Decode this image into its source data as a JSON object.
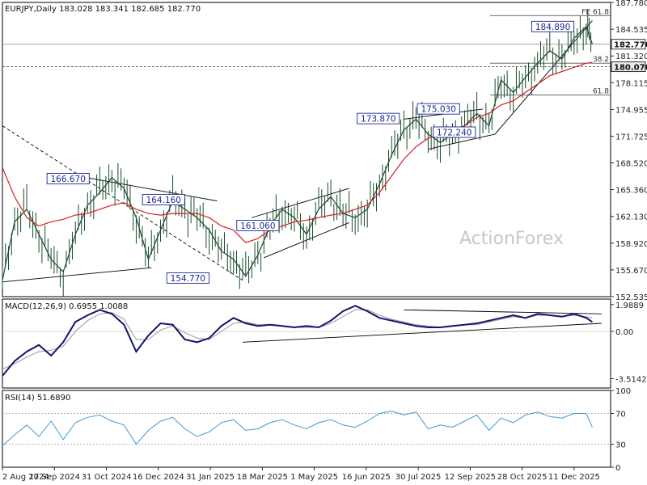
{
  "header": {
    "price": "EURJPY,Daily  183.028 183.341 182.685 182.770",
    "macd": "MACD(12,26,9) 0.6955 1.0088",
    "rsi": "RSI(14) 51.6890"
  },
  "watermark": "ActionForex",
  "colors": {
    "price": "#1a4a2c",
    "ma": "#d62020",
    "macd": "#14146e",
    "signal": "#999999",
    "rsi": "#3d9ad4",
    "trend": "#000000",
    "label_border": "#1a2a8c"
  },
  "chart_data": [
    {
      "type": "line",
      "title": "EURJPY,Daily",
      "ohlc_last": {
        "open": 183.028,
        "high": 183.341,
        "low": 182.685,
        "close": 182.77
      },
      "x_ticks": [
        "2 Aug 2024",
        "17 Sep 2024",
        "31 Oct 2024",
        "16 Dec 2024",
        "31 Jan 2025",
        "18 Mar 2025",
        "1 May 2025",
        "16 Jun 2025",
        "30 Jul 2025",
        "12 Sep 2025",
        "28 Oct 2025",
        "11 Dec 2025"
      ],
      "ylim": [
        152.535,
        187.78
      ],
      "y_ticks": [
        "187.780",
        "184.535",
        "181.320",
        "178.115",
        "174.955",
        "171.725",
        "168.520",
        "165.360",
        "162.130",
        "158.920",
        "155.670",
        "152.535"
      ],
      "tag_levels": [
        {
          "label": "182.770",
          "value": 182.77
        },
        {
          "label": "180.070",
          "value": 180.07
        }
      ],
      "fib_levels": [
        {
          "label": "FE 61.8",
          "value": 186.2
        },
        {
          "label": "38.2",
          "value": 180.5
        },
        {
          "label": "61.8",
          "value": 176.7
        }
      ],
      "annotations": [
        {
          "label": "166.670",
          "x": 10.8,
          "y": 166.67
        },
        {
          "label": "164.160",
          "x": 26.5,
          "y": 164.16
        },
        {
          "label": "154.770",
          "x": 30.5,
          "y": 154.77
        },
        {
          "label": "161.060",
          "x": 42.0,
          "y": 161.06
        },
        {
          "label": "173.870",
          "x": 61.8,
          "y": 173.87
        },
        {
          "label": "175.030",
          "x": 71.7,
          "y": 175.03
        },
        {
          "label": "172.240",
          "x": 74.3,
          "y": 172.24
        },
        {
          "label": "184.890",
          "x": 90.5,
          "y": 184.89
        }
      ],
      "trendlines": [
        {
          "from": [
            0,
            154.3
          ],
          "to": [
            24.5,
            156.0
          ]
        },
        {
          "from": [
            13.0,
            166.9
          ],
          "to": [
            35.3,
            164.0
          ]
        },
        {
          "from": [
            41.0,
            162.0
          ],
          "to": [
            57.0,
            165.5
          ]
        },
        {
          "from": [
            43.0,
            157.2
          ],
          "to": [
            57.0,
            161.4
          ]
        },
        {
          "from": [
            66.0,
            173.8
          ],
          "to": [
            79.0,
            175.0
          ]
        },
        {
          "from": [
            70.0,
            170.2
          ],
          "to": [
            81.0,
            172.0
          ]
        },
        {
          "from": [
            81.0,
            172.0
          ],
          "to": [
            97.0,
            185.6
          ]
        },
        {
          "from": [
            0,
            173.0
          ],
          "to": [
            39.5,
            154.5
          ],
          "dashed": true
        }
      ],
      "x": [
        0,
        2,
        4,
        6,
        8,
        10,
        12,
        14,
        16,
        18,
        20,
        22,
        24,
        26,
        28,
        30,
        32,
        34,
        36,
        38,
        40,
        42,
        44,
        46,
        48,
        50,
        52,
        54,
        56,
        58,
        60,
        62,
        64,
        66,
        68,
        70,
        72,
        74,
        76,
        78,
        80,
        82,
        84,
        86,
        88,
        90,
        92,
        94,
        96,
        97
      ],
      "series": [
        {
          "name": "EURJPY",
          "values": [
            154.5,
            161.5,
            163.0,
            160.0,
            157.0,
            155.5,
            160.0,
            163.5,
            165.0,
            166.8,
            165.5,
            162.0,
            157.0,
            160.5,
            164.0,
            163.0,
            162.0,
            160.5,
            158.0,
            157.0,
            155.0,
            157.5,
            161.0,
            163.0,
            162.0,
            160.0,
            163.0,
            164.5,
            162.5,
            162.0,
            163.0,
            166.0,
            169.5,
            172.5,
            173.8,
            172.0,
            171.0,
            172.0,
            173.0,
            174.5,
            173.0,
            178.5,
            177.0,
            178.8,
            180.5,
            182.0,
            181.0,
            183.5,
            184.9,
            182.8
          ]
        },
        {
          "name": "MA",
          "values": [
            168.0,
            164.5,
            162.0,
            161.0,
            161.5,
            161.8,
            162.3,
            162.5,
            163.0,
            163.5,
            163.8,
            163.0,
            162.5,
            162.3,
            162.5,
            162.5,
            162.5,
            162.0,
            161.0,
            160.5,
            159.0,
            159.5,
            160.5,
            161.0,
            161.5,
            161.7,
            162.0,
            162.3,
            162.5,
            163.0,
            163.5,
            165.0,
            167.0,
            169.0,
            170.5,
            171.5,
            172.0,
            172.5,
            173.0,
            174.0,
            174.5,
            175.5,
            176.0,
            177.0,
            178.0,
            179.0,
            179.5,
            180.0,
            180.5,
            180.6
          ]
        }
      ]
    },
    {
      "type": "line",
      "title": "MACD(12,26,9)",
      "ylim": [
        -4.2,
        2.4
      ],
      "y_ticks": [
        "1.9889",
        "0.00",
        "-3.5142"
      ],
      "x": [
        0,
        2,
        4,
        6,
        8,
        10,
        12,
        14,
        16,
        18,
        20,
        22,
        24,
        26,
        28,
        30,
        32,
        34,
        36,
        38,
        40,
        42,
        44,
        46,
        48,
        50,
        52,
        54,
        56,
        58,
        60,
        62,
        64,
        66,
        68,
        70,
        72,
        74,
        76,
        78,
        80,
        82,
        84,
        86,
        88,
        90,
        92,
        94,
        96,
        97
      ],
      "series": [
        {
          "name": "MACD",
          "values": [
            -3.3,
            -2.2,
            -1.5,
            -1.0,
            -1.8,
            -0.8,
            0.7,
            1.2,
            1.6,
            1.3,
            0.5,
            -1.5,
            -0.3,
            0.6,
            0.5,
            -0.6,
            -0.8,
            -0.5,
            0.4,
            1.0,
            0.6,
            0.4,
            0.5,
            0.4,
            0.3,
            0.4,
            0.3,
            0.8,
            1.5,
            1.9,
            1.5,
            1.0,
            0.8,
            0.6,
            0.4,
            0.3,
            0.3,
            0.4,
            0.5,
            0.6,
            0.8,
            1.0,
            1.2,
            1.0,
            1.3,
            1.2,
            1.1,
            1.3,
            1.0,
            0.7
          ]
        },
        {
          "name": "Signal",
          "values": [
            -2.8,
            -2.4,
            -1.9,
            -1.5,
            -1.4,
            -1.1,
            0.0,
            0.8,
            1.3,
            1.4,
            0.9,
            -0.6,
            -0.6,
            0.1,
            0.4,
            -0.1,
            -0.5,
            -0.6,
            0.0,
            0.6,
            0.7,
            0.5,
            0.5,
            0.4,
            0.3,
            0.3,
            0.3,
            0.6,
            1.1,
            1.6,
            1.6,
            1.2,
            0.9,
            0.7,
            0.5,
            0.4,
            0.3,
            0.4,
            0.5,
            0.5,
            0.7,
            0.9,
            1.1,
            1.0,
            1.2,
            1.2,
            1.1,
            1.2,
            1.1,
            1.0
          ]
        }
      ]
    },
    {
      "type": "line",
      "title": "RSI(14)",
      "ylim": [
        0,
        100
      ],
      "y_ticks": [
        "100",
        "70",
        "30",
        "0"
      ],
      "x": [
        0,
        2,
        4,
        6,
        8,
        10,
        12,
        14,
        16,
        18,
        20,
        22,
        24,
        26,
        28,
        30,
        32,
        34,
        36,
        38,
        40,
        42,
        44,
        46,
        48,
        50,
        52,
        54,
        56,
        58,
        60,
        62,
        64,
        66,
        68,
        70,
        72,
        74,
        76,
        78,
        80,
        82,
        84,
        86,
        88,
        90,
        92,
        94,
        96,
        97
      ],
      "series": [
        {
          "name": "RSI",
          "values": [
            28,
            42,
            55,
            40,
            60,
            36,
            58,
            65,
            68,
            60,
            55,
            30,
            48,
            60,
            65,
            50,
            40,
            46,
            58,
            62,
            48,
            50,
            58,
            62,
            55,
            50,
            58,
            62,
            55,
            52,
            60,
            70,
            73,
            68,
            72,
            50,
            55,
            52,
            60,
            68,
            48,
            64,
            58,
            68,
            72,
            66,
            64,
            70,
            70,
            52
          ]
        }
      ]
    }
  ]
}
